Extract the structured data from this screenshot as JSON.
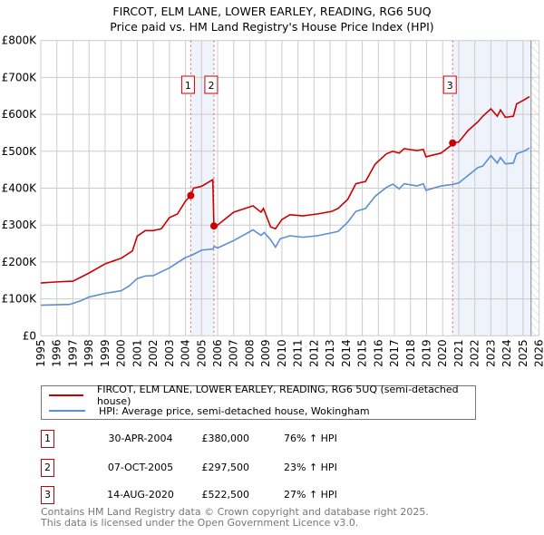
{
  "chart_data": {
    "type": "line",
    "title": "FIRCOT, ELM LANE, LOWER EARLEY, READING, RG6 5UQ",
    "subtitle": "Price paid vs. HM Land Registry's House Price Index (HPI)",
    "xlim": [
      1995,
      2026
    ],
    "ylim": [
      0,
      800000
    ],
    "y_ticks": [
      {
        "v": 0,
        "label": "£0"
      },
      {
        "v": 100000,
        "label": "£100K"
      },
      {
        "v": 200000,
        "label": "£200K"
      },
      {
        "v": 300000,
        "label": "£300K"
      },
      {
        "v": 400000,
        "label": "£400K"
      },
      {
        "v": 500000,
        "label": "£500K"
      },
      {
        "v": 600000,
        "label": "£600K"
      },
      {
        "v": 700000,
        "label": "£700K"
      },
      {
        "v": 800000,
        "label": "£800K"
      }
    ],
    "x_ticks": [
      "1995",
      "1996",
      "1997",
      "1998",
      "1999",
      "2000",
      "2001",
      "2002",
      "2003",
      "2004",
      "2005",
      "2006",
      "2007",
      "2008",
      "2009",
      "2010",
      "2011",
      "2012",
      "2013",
      "2014",
      "2015",
      "2016",
      "2017",
      "2018",
      "2019",
      "2020",
      "2021",
      "2022",
      "2023",
      "2024",
      "2025",
      "2026"
    ],
    "grid": true,
    "series": [
      {
        "name": "FIRCOT, ELM LANE, LOWER EARLEY, READING, RG6 5UQ (semi-detached house)",
        "color": "#cc0000",
        "points": [
          [
            1995,
            143000
          ],
          [
            1996,
            146000
          ],
          [
            1997,
            148000
          ],
          [
            1998,
            170000
          ],
          [
            1999,
            195000
          ],
          [
            2000,
            210000
          ],
          [
            2000.7,
            230000
          ],
          [
            2001,
            270000
          ],
          [
            2001.5,
            285000
          ],
          [
            2002,
            285000
          ],
          [
            2002.5,
            290000
          ],
          [
            2003,
            320000
          ],
          [
            2003.5,
            330000
          ],
          [
            2004,
            365000
          ],
          [
            2004.33,
            380000
          ],
          [
            2004.5,
            400000
          ],
          [
            2005,
            405000
          ],
          [
            2005.7,
            423000
          ],
          [
            2005.77,
            297500
          ],
          [
            2006,
            300000
          ],
          [
            2007,
            335000
          ],
          [
            2008.2,
            352000
          ],
          [
            2008.7,
            335000
          ],
          [
            2008.85,
            345000
          ],
          [
            2009.3,
            295000
          ],
          [
            2009.6,
            290000
          ],
          [
            2010,
            315000
          ],
          [
            2010.5,
            328000
          ],
          [
            2011.3,
            325000
          ],
          [
            2012.2,
            330000
          ],
          [
            2013.1,
            337000
          ],
          [
            2013.5,
            345000
          ],
          [
            2014.1,
            370000
          ],
          [
            2014.6,
            412000
          ],
          [
            2015.2,
            418000
          ],
          [
            2015.8,
            465000
          ],
          [
            2016.5,
            493000
          ],
          [
            2016.9,
            500000
          ],
          [
            2017.3,
            495000
          ],
          [
            2017.6,
            507000
          ],
          [
            2018.4,
            502000
          ],
          [
            2018.8,
            505000
          ],
          [
            2018.96,
            485000
          ],
          [
            2019.9,
            495000
          ],
          [
            2020.5,
            515000
          ],
          [
            2020.62,
            522500
          ],
          [
            2021,
            525000
          ],
          [
            2021.6,
            557000
          ],
          [
            2022.2,
            580000
          ],
          [
            2022.5,
            595000
          ],
          [
            2023,
            615000
          ],
          [
            2023.4,
            595000
          ],
          [
            2023.6,
            612000
          ],
          [
            2023.9,
            592000
          ],
          [
            2024.4,
            595000
          ],
          [
            2024.6,
            628000
          ],
          [
            2025.1,
            640000
          ],
          [
            2025.4,
            648000
          ]
        ]
      },
      {
        "name": "HPI: Average price, semi-detached house, Wokingham",
        "color": "#5b8fd4",
        "points": [
          [
            1995,
            83000
          ],
          [
            1996,
            84000
          ],
          [
            1996.8,
            85000
          ],
          [
            1997.5,
            95000
          ],
          [
            1998,
            105000
          ],
          [
            1999,
            115000
          ],
          [
            2000,
            122000
          ],
          [
            2000.5,
            135000
          ],
          [
            2001,
            155000
          ],
          [
            2001.5,
            162000
          ],
          [
            2002,
            163000
          ],
          [
            2003,
            184000
          ],
          [
            2004,
            212000
          ],
          [
            2004.33,
            217000
          ],
          [
            2005,
            232000
          ],
          [
            2005.7,
            235000
          ],
          [
            2005.8,
            242000
          ],
          [
            2006,
            238000
          ],
          [
            2007,
            258000
          ],
          [
            2007.5,
            270000
          ],
          [
            2008.2,
            287000
          ],
          [
            2008.7,
            272000
          ],
          [
            2008.9,
            280000
          ],
          [
            2009.3,
            260000
          ],
          [
            2009.6,
            240000
          ],
          [
            2009.9,
            263000
          ],
          [
            2010.5,
            271000
          ],
          [
            2011.3,
            267000
          ],
          [
            2012.2,
            271000
          ],
          [
            2013.1,
            279000
          ],
          [
            2013.5,
            283000
          ],
          [
            2014.1,
            308000
          ],
          [
            2014.6,
            337000
          ],
          [
            2015.2,
            345000
          ],
          [
            2015.8,
            378000
          ],
          [
            2016.5,
            402000
          ],
          [
            2016.9,
            411000
          ],
          [
            2017.3,
            398000
          ],
          [
            2017.6,
            412000
          ],
          [
            2018.4,
            406000
          ],
          [
            2018.8,
            412000
          ],
          [
            2018.96,
            394000
          ],
          [
            2019.9,
            406000
          ],
          [
            2020.6,
            410000
          ],
          [
            2021,
            414000
          ],
          [
            2021.6,
            435000
          ],
          [
            2022.2,
            456000
          ],
          [
            2022.5,
            460000
          ],
          [
            2023,
            488000
          ],
          [
            2023.4,
            468000
          ],
          [
            2023.6,
            483000
          ],
          [
            2023.9,
            466000
          ],
          [
            2024.4,
            468000
          ],
          [
            2024.6,
            493000
          ],
          [
            2025.1,
            501000
          ],
          [
            2025.4,
            509000
          ]
        ]
      }
    ],
    "sales": [
      {
        "id": "1",
        "x": 2004.33,
        "price": 380000,
        "date": "30-APR-2004",
        "price_label": "£380,000",
        "hpi": "76% ↑ HPI"
      },
      {
        "id": "2",
        "x": 2005.77,
        "price": 297500,
        "date": "07-OCT-2005",
        "price_label": "£297,500",
        "hpi": "23% ↑ HPI"
      },
      {
        "id": "3",
        "x": 2020.62,
        "price": 522500,
        "date": "14-AUG-2020",
        "price_label": "£522,500",
        "hpi": "27% ↑ HPI"
      }
    ],
    "shaded_ranges": [
      [
        2004.33,
        2005.77
      ],
      [
        2020.62,
        2025.5
      ]
    ],
    "forecast_start": 2025.5
  },
  "legend": {
    "red": "FIRCOT, ELM LANE, LOWER EARLEY, READING, RG6 5UQ (semi-detached house)",
    "blue": "HPI: Average price, semi-detached house, Wokingham"
  },
  "footer": {
    "line1": "Contains HM Land Registry data © Crown copyright and database right 2025.",
    "line2": "This data is licensed under the Open Government Licence v3.0."
  }
}
